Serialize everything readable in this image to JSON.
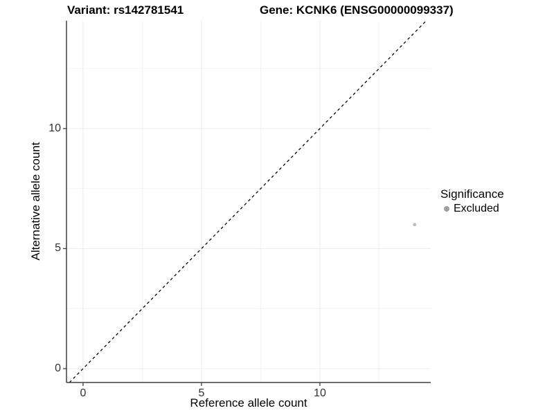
{
  "title": {
    "variant": "Variant: rs142781541",
    "gene": "Gene: KCNK6 (ENSG00000099337)"
  },
  "chart_data": {
    "type": "scatter",
    "title": "Variant: rs142781541   Gene: KCNK6 (ENSG00000099337)",
    "xlabel": "Reference allele count",
    "ylabel": "Alternative allele count",
    "xlim": [
      -0.7,
      14.68
    ],
    "ylim": [
      -0.576,
      14.49
    ],
    "xticks": [
      0,
      5,
      10
    ],
    "yticks": [
      0,
      5,
      10
    ],
    "xticks_minor": [
      2.5,
      7.5,
      12.5
    ],
    "yticks_minor": [
      2.5,
      7.5,
      12.5
    ],
    "grid": "on",
    "points": [
      {
        "x": 14,
        "y": 6,
        "significance": "Excluded"
      }
    ],
    "identity_line": {
      "from": "y=x",
      "style": "dashed",
      "color": "#000000"
    },
    "point_color": "#bdbdbd",
    "legend": {
      "title": "Significance",
      "position": "right",
      "items": [
        {
          "label": "Excluded",
          "color": "#a0a0a0"
        }
      ]
    }
  },
  "colors": {
    "background": "#ffffff",
    "axis_line": "#3d3d3d",
    "grid_major": "#ececec",
    "grid_minor": "#f4f4f4",
    "tick_mark": "#3d3d3d"
  }
}
